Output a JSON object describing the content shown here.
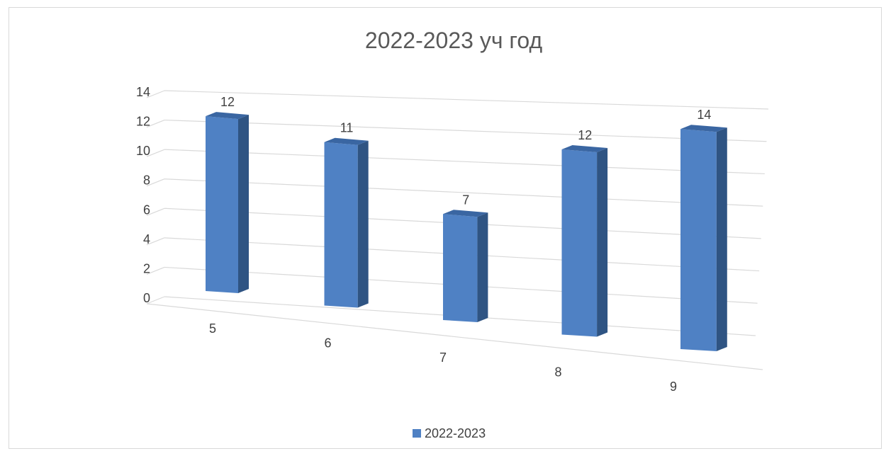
{
  "chart_data": {
    "type": "bar",
    "title": "2022-2023 уч год",
    "categories": [
      "5",
      "6",
      "7",
      "8",
      "9"
    ],
    "series": [
      {
        "name": "2022-2023",
        "values": [
          12,
          11,
          7,
          12,
          14
        ]
      }
    ],
    "data_labels": [
      "12",
      "11",
      "7",
      "12",
      "14"
    ],
    "y_ticks": [
      "0",
      "2",
      "4",
      "6",
      "8",
      "10",
      "12",
      "14"
    ],
    "ylim": [
      0,
      14
    ],
    "grid": true,
    "legend_position": "bottom",
    "colors": {
      "front": "#4f81c4",
      "side": "#2f5483",
      "top": "#3a66a2",
      "grid": "#d9d9d9"
    }
  }
}
